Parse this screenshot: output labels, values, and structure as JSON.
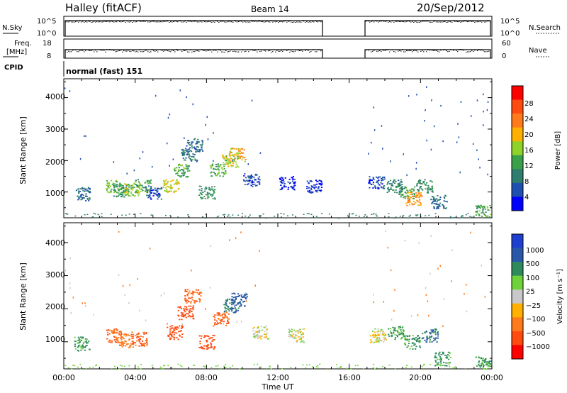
{
  "header": {
    "title": "Halley (fitACF)",
    "beam": "Beam 14",
    "date": "20/Sep/2012"
  },
  "top_panels": {
    "nsky": {
      "left_label": "N.Sky",
      "left_ticks": [
        "10^5",
        "10^0"
      ],
      "right_ticks": [
        "10^5",
        "10^0"
      ],
      "right_label": "N.Search"
    },
    "freq": {
      "left_label_1": "Freq.",
      "left_label_2": "[MHz]",
      "left_ticks": [
        "18",
        "8"
      ],
      "right_ticks": [
        "60",
        "0"
      ],
      "right_label": "Nave"
    },
    "cpid": {
      "label": "CPID",
      "value": "normal (fast) 151"
    }
  },
  "axes": {
    "x_label": "Time UT",
    "x_ticks": [
      "00:00",
      "04:00",
      "08:00",
      "12:00",
      "16:00",
      "20:00",
      "00:00"
    ],
    "y_label": "Slant Range [km]",
    "y_ticks": [
      "1000",
      "2000",
      "3000",
      "4000"
    ]
  },
  "colorbars": {
    "power": {
      "label": "Power [dB]",
      "ticks": [
        "4",
        "8",
        "12",
        "16",
        "20",
        "24",
        "28"
      ],
      "colors": [
        "#0000ff",
        "#1f4fb0",
        "#2e7d6e",
        "#3aa04a",
        "#8fd22a",
        "#ffb000",
        "#ff7a1a",
        "#ff4a10",
        "#ff0000"
      ]
    },
    "velocity": {
      "label": "Velocity [m s⁻¹]",
      "ticks": [
        "1000",
        "500",
        "100",
        "25",
        "−25",
        "−100",
        "−500",
        "−1000"
      ],
      "colors": [
        "#1f3fd0",
        "#2a58a8",
        "#2e8a5c",
        "#6fd23a",
        "#c8c8c8",
        "#ffb000",
        "#ff7a1a",
        "#ff4a10",
        "#ff0000"
      ]
    }
  },
  "chart_data": [
    {
      "type": "heatmap",
      "name": "Power",
      "xlabel": "Time UT",
      "ylabel": "Slant Range [km]",
      "xlim": [
        0,
        24
      ],
      "ylim": [
        180,
        4600
      ],
      "colorbar": "Power [dB]",
      "blobs": [
        {
          "t": 1.0,
          "r": 950,
          "v": 10
        },
        {
          "t": 2.8,
          "r": 1200,
          "v": 18
        },
        {
          "t": 3.2,
          "r": 1050,
          "v": 14
        },
        {
          "t": 3.8,
          "r": 1100,
          "v": 20
        },
        {
          "t": 4.4,
          "r": 1200,
          "v": 16
        },
        {
          "t": 5.0,
          "r": 1000,
          "v": 8
        },
        {
          "t": 6.0,
          "r": 1200,
          "v": 22
        },
        {
          "t": 6.6,
          "r": 1700,
          "v": 16
        },
        {
          "t": 7.0,
          "r": 2200,
          "v": 12
        },
        {
          "t": 7.3,
          "r": 2500,
          "v": 10
        },
        {
          "t": 8.0,
          "r": 1000,
          "v": 14
        },
        {
          "t": 8.6,
          "r": 1700,
          "v": 16
        },
        {
          "t": 9.3,
          "r": 2000,
          "v": 20
        },
        {
          "t": 9.7,
          "r": 2200,
          "v": 24
        },
        {
          "t": 10.5,
          "r": 1400,
          "v": 8
        },
        {
          "t": 12.5,
          "r": 1300,
          "v": 6
        },
        {
          "t": 14.0,
          "r": 1200,
          "v": 6
        },
        {
          "t": 17.5,
          "r": 1300,
          "v": 8
        },
        {
          "t": 18.5,
          "r": 1200,
          "v": 12
        },
        {
          "t": 19.2,
          "r": 1000,
          "v": 16
        },
        {
          "t": 19.6,
          "r": 800,
          "v": 26
        },
        {
          "t": 20.2,
          "r": 1200,
          "v": 14
        },
        {
          "t": 21.0,
          "r": 700,
          "v": 10
        },
        {
          "t": 23.5,
          "r": 400,
          "v": 16
        }
      ]
    },
    {
      "type": "heatmap",
      "name": "Velocity",
      "xlabel": "Time UT",
      "ylabel": "Slant Range [km]",
      "xlim": [
        0,
        24
      ],
      "ylim": [
        180,
        4600
      ],
      "colorbar": "Velocity [m s⁻¹]",
      "blobs": [
        {
          "t": 1.0,
          "r": 950,
          "v": 100
        },
        {
          "t": 2.8,
          "r": 1200,
          "v": -300
        },
        {
          "t": 3.4,
          "r": 1050,
          "v": -200
        },
        {
          "t": 4.2,
          "r": 1100,
          "v": -300
        },
        {
          "t": 6.2,
          "r": 1300,
          "v": -500
        },
        {
          "t": 6.8,
          "r": 1900,
          "v": -400
        },
        {
          "t": 7.2,
          "r": 2400,
          "v": -300
        },
        {
          "t": 8.0,
          "r": 1000,
          "v": -400
        },
        {
          "t": 8.8,
          "r": 1700,
          "v": -300
        },
        {
          "t": 9.4,
          "r": 2100,
          "v": 300
        },
        {
          "t": 9.8,
          "r": 2300,
          "v": 600
        },
        {
          "t": 11.0,
          "r": 1300,
          "v": 0
        },
        {
          "t": 13.0,
          "r": 1200,
          "v": 0
        },
        {
          "t": 17.6,
          "r": 1200,
          "v": 0
        },
        {
          "t": 18.6,
          "r": 1300,
          "v": 80
        },
        {
          "t": 19.5,
          "r": 1000,
          "v": 100
        },
        {
          "t": 20.5,
          "r": 1200,
          "v": 300
        },
        {
          "t": 21.2,
          "r": 500,
          "v": 100
        },
        {
          "t": 23.5,
          "r": 350,
          "v": 100
        }
      ]
    }
  ]
}
